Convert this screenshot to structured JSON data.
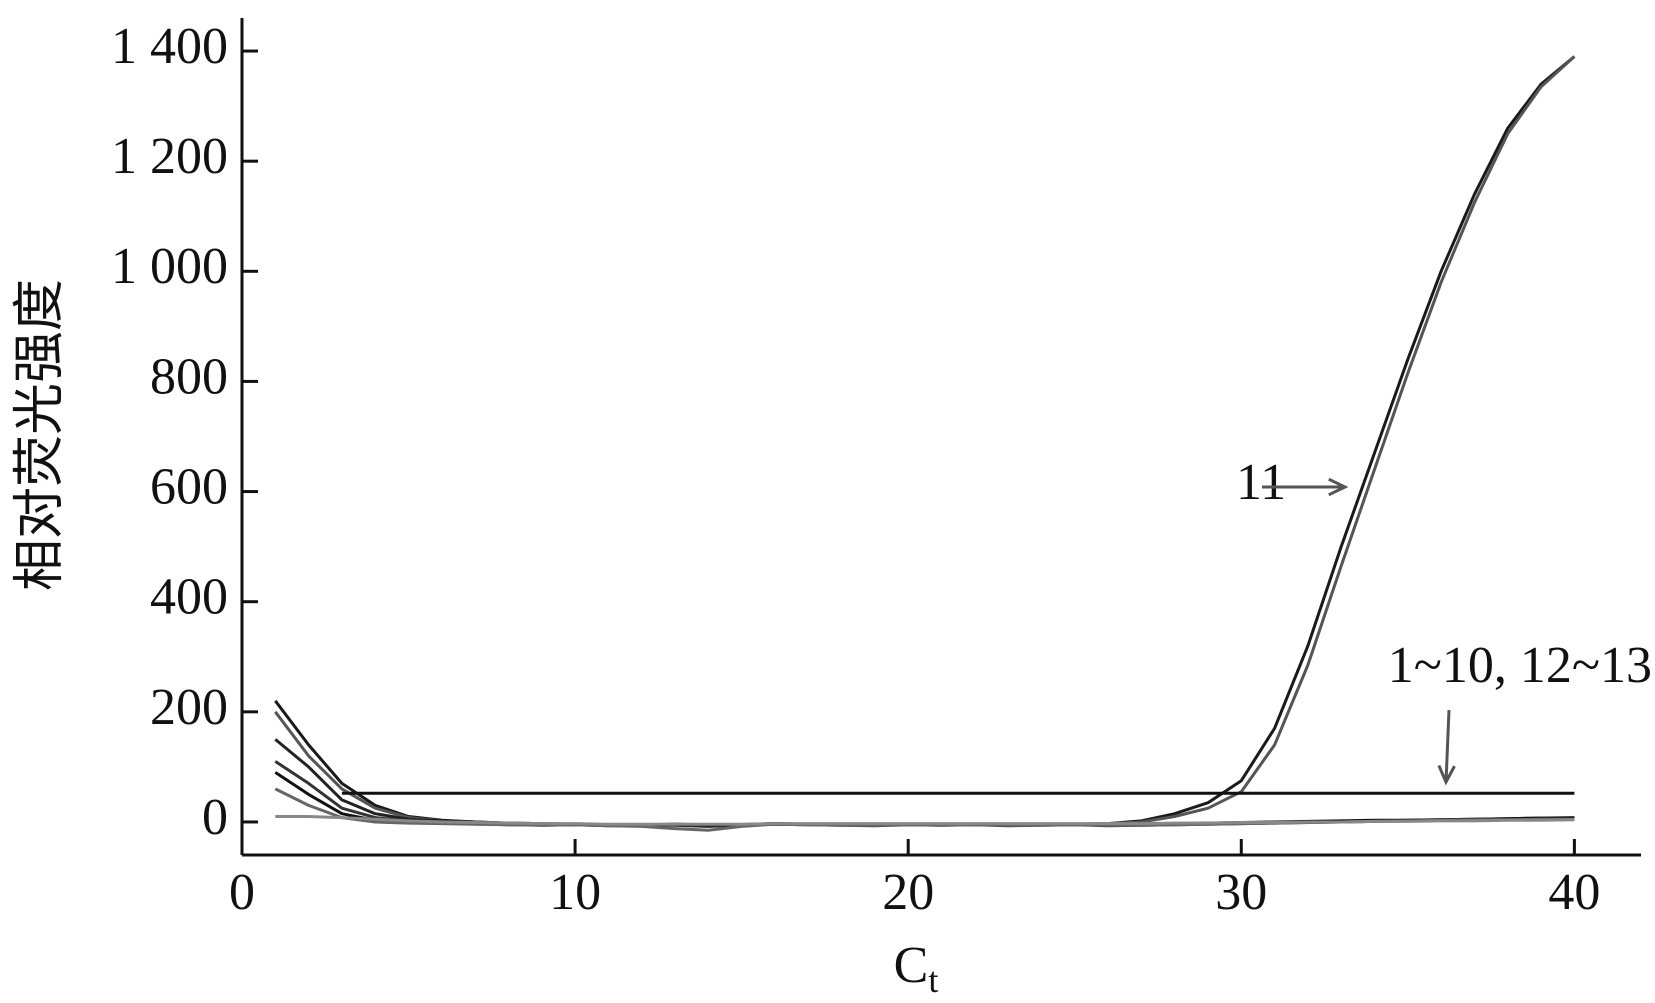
{
  "chart_data": {
    "type": "line",
    "y_label": "相对荧光强度",
    "x_label": "C",
    "x_label_subscript": "t",
    "x": [
      1,
      2,
      3,
      4,
      5,
      6,
      7,
      8,
      9,
      10,
      11,
      12,
      13,
      14,
      15,
      16,
      17,
      18,
      19,
      20,
      21,
      22,
      23,
      24,
      25,
      26,
      27,
      28,
      29,
      30,
      31,
      32,
      33,
      34,
      35,
      36,
      37,
      38,
      39,
      40
    ],
    "series": [
      {
        "color": "#1a1a1a",
        "values": [
          220,
          140,
          70,
          30,
          10,
          3,
          0,
          -2,
          -3,
          -4,
          -5,
          -5,
          -6,
          -8,
          -5,
          -4,
          -4,
          -4,
          -4,
          -4,
          -4,
          -4,
          -4,
          -4,
          -4,
          -3,
          2,
          15,
          35,
          75,
          170,
          320,
          500,
          670,
          840,
          1000,
          1140,
          1260,
          1340,
          1390
        ]
      },
      {
        "color": "#555555",
        "values": [
          200,
          120,
          60,
          25,
          8,
          2,
          0,
          -2,
          -3,
          -4,
          -5,
          -5,
          -5,
          -6,
          -5,
          -4,
          -4,
          -4,
          -4,
          -4,
          -4,
          -4,
          -4,
          -4,
          -4,
          -3,
          0,
          10,
          25,
          55,
          140,
          285,
          465,
          640,
          815,
          980,
          1125,
          1250,
          1335,
          1390
        ]
      },
      {
        "color": "#111111",
        "values": [
          null,
          null,
          52,
          52,
          52,
          52,
          52,
          52,
          52,
          52,
          52,
          52,
          52,
          52,
          52,
          52,
          52,
          52,
          52,
          52,
          52,
          52,
          52,
          52,
          52,
          52,
          52,
          52,
          52,
          52,
          52,
          52,
          52,
          52,
          52,
          52,
          52,
          52,
          52,
          52
        ]
      },
      {
        "color": "#222222",
        "values": [
          150,
          100,
          40,
          15,
          5,
          2,
          0,
          -3,
          -5,
          -4,
          -6,
          -5,
          -4,
          -6,
          -5,
          -3,
          -4,
          -5,
          -6,
          -4,
          -5,
          -4,
          -6,
          -5,
          -4,
          -6,
          -5,
          -4,
          -3,
          -2,
          -1,
          0,
          1,
          2,
          3,
          4,
          5,
          6,
          7,
          8
        ]
      },
      {
        "color": "#333333",
        "values": [
          110,
          70,
          25,
          8,
          2,
          0,
          -2,
          -4,
          -6,
          -5,
          -7,
          -6,
          -5,
          -7,
          -6,
          -4,
          -5,
          -6,
          -7,
          -5,
          -6,
          -5,
          -7,
          -6,
          -5,
          -7,
          -6,
          -5,
          -4,
          -3,
          -2,
          -1,
          0,
          1,
          2,
          3,
          4,
          5,
          6,
          6
        ]
      },
      {
        "color": "#111111",
        "values": [
          90,
          50,
          15,
          3,
          0,
          -2,
          -3,
          -5,
          -5,
          -4,
          -6,
          -5,
          -4,
          -5,
          -5,
          -3,
          -4,
          -5,
          -5,
          -4,
          -5,
          -4,
          -5,
          -5,
          -4,
          -5,
          -5,
          -3,
          -2,
          -1,
          0,
          1,
          2,
          3,
          3,
          4,
          5,
          6,
          7,
          7
        ]
      },
      {
        "color": "#666666",
        "values": [
          60,
          30,
          8,
          0,
          -2,
          -3,
          -4,
          -5,
          -6,
          -5,
          -7,
          -8,
          -12,
          -15,
          -8,
          -4,
          -5,
          -6,
          -6,
          -5,
          -6,
          -5,
          -6,
          -6,
          -5,
          -6,
          -6,
          -5,
          -4,
          -3,
          -2,
          -1,
          0,
          1,
          2,
          3,
          4,
          4,
          5,
          5
        ]
      },
      {
        "color": "#888888",
        "values": [
          10,
          10,
          8,
          5,
          2,
          0,
          -1,
          -2,
          -3,
          -3,
          -4,
          -4,
          -4,
          -4,
          -4,
          -3,
          -3,
          -3,
          -3,
          -3,
          -3,
          -3,
          -3,
          -3,
          -3,
          -3,
          -3,
          -2,
          -2,
          -1,
          -1,
          0,
          0,
          1,
          1,
          2,
          2,
          3,
          3,
          4
        ]
      }
    ],
    "xlim": [
      0,
      42
    ],
    "xticks": [
      0,
      10,
      20,
      30,
      40
    ],
    "ylim": [
      -60,
      1460
    ],
    "yticks": [
      0,
      200,
      400,
      600,
      800,
      {
        "value": 1000,
        "label": "1 000"
      },
      {
        "value": 1200,
        "label": "1 200"
      },
      {
        "value": 1400,
        "label": "1 400"
      }
    ],
    "annotations": [
      {
        "text": "11"
      },
      {
        "text": "1~10, 12~13"
      }
    ]
  }
}
